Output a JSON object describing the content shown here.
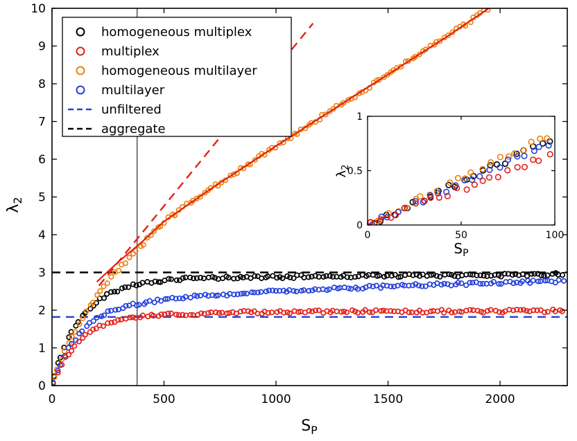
{
  "figure": {
    "background": "#ffffff"
  },
  "chart_data": {
    "type": "scatter",
    "title": "",
    "xlabel": "S_P",
    "ylabel": "λ_2",
    "xlabel_parts": {
      "base": "S",
      "sub": "P"
    },
    "ylabel_parts": {
      "base": "λ",
      "sub": "2"
    },
    "xlim": [
      0,
      2300
    ],
    "ylim": [
      0,
      10
    ],
    "xticks": [
      0,
      500,
      1000,
      1500,
      2000
    ],
    "yticks": [
      0,
      1,
      2,
      3,
      4,
      5,
      6,
      7,
      8,
      9,
      10
    ],
    "grid": false,
    "legend_position": "top-left",
    "jitter_seed": 42,
    "vertical_line": {
      "x": 380,
      "color": "#000000",
      "width": 1
    },
    "series": [
      {
        "name": "homogeneous multiplex",
        "color": "#000000",
        "marker": "circle",
        "marker_step": 16,
        "jitter": 0.04,
        "x": [
          0,
          10,
          25,
          50,
          75,
          100,
          150,
          200,
          250,
          300,
          350,
          400,
          450,
          500,
          600,
          700,
          850,
          1000,
          1250,
          1500,
          1750,
          2000,
          2150,
          2290
        ],
        "y": [
          0,
          0.28,
          0.55,
          0.95,
          1.28,
          1.55,
          1.95,
          2.24,
          2.42,
          2.55,
          2.64,
          2.71,
          2.76,
          2.79,
          2.83,
          2.85,
          2.87,
          2.88,
          2.9,
          2.91,
          2.92,
          2.93,
          2.94,
          2.95
        ]
      },
      {
        "name": "homogeneous multilayer",
        "color": "#ec820d",
        "marker": "circle",
        "marker_step": 16,
        "jitter": 0.05,
        "x": [
          0,
          10,
          25,
          50,
          75,
          100,
          150,
          200,
          250,
          300,
          350,
          380,
          400,
          450,
          500,
          600,
          700,
          850,
          1000,
          1250,
          1500,
          1750,
          1950
        ],
        "y": [
          0,
          0.2,
          0.45,
          0.8,
          1.1,
          1.4,
          1.9,
          2.35,
          2.75,
          3.1,
          3.4,
          3.58,
          3.72,
          4.05,
          4.35,
          4.78,
          5.18,
          5.77,
          6.35,
          7.3,
          8.25,
          9.2,
          10.0
        ]
      },
      {
        "name": "multilayer",
        "color": "#2440d9",
        "marker": "circle",
        "marker_step": 16,
        "jitter": 0.04,
        "x": [
          0,
          10,
          25,
          50,
          75,
          100,
          150,
          200,
          250,
          300,
          350,
          400,
          450,
          500,
          600,
          700,
          850,
          1000,
          1250,
          1500,
          1750,
          2000,
          2150,
          2290
        ],
        "y": [
          0,
          0.2,
          0.42,
          0.73,
          0.98,
          1.2,
          1.55,
          1.8,
          1.95,
          2.05,
          2.13,
          2.19,
          2.24,
          2.28,
          2.34,
          2.39,
          2.45,
          2.5,
          2.57,
          2.63,
          2.68,
          2.72,
          2.75,
          2.77
        ]
      },
      {
        "name": "multiplex",
        "color": "#e32017",
        "marker": "circle",
        "marker_step": 16,
        "jitter": 0.04,
        "x": [
          0,
          10,
          25,
          50,
          75,
          100,
          150,
          200,
          250,
          300,
          350,
          400,
          450,
          500,
          600,
          700,
          850,
          1000,
          1250,
          1500,
          1750,
          2000,
          2150,
          2290
        ],
        "y": [
          0,
          0.18,
          0.36,
          0.63,
          0.85,
          1.04,
          1.33,
          1.53,
          1.65,
          1.73,
          1.78,
          1.82,
          1.85,
          1.87,
          1.9,
          1.92,
          1.94,
          1.95,
          1.96,
          1.97,
          1.97,
          1.97,
          1.98,
          1.98
        ]
      }
    ],
    "lines": [
      {
        "name": "unfiltered",
        "color": "#2440d9",
        "style": "dashed",
        "width": 2.4,
        "layer": "back",
        "points": [
          [
            0,
            1.82
          ],
          [
            2300,
            1.82
          ]
        ]
      },
      {
        "name": "aggregate",
        "color": "#000000",
        "style": "dashed",
        "width": 2.4,
        "layer": "back",
        "points": [
          [
            0,
            3.0
          ],
          [
            2300,
            3.0
          ]
        ]
      },
      {
        "name": "linear-extrapolation",
        "color": "#e32017",
        "style": "dashed",
        "width": 2.4,
        "layer": "back",
        "points": [
          [
            210,
            2.65
          ],
          [
            1165,
            9.6
          ]
        ]
      },
      {
        "name": "fit",
        "color": "#e32017",
        "style": "solid",
        "width": 2.2,
        "layer": "front",
        "points": [
          [
            200,
            2.75
          ],
          [
            300,
            3.3
          ],
          [
            400,
            3.8
          ],
          [
            500,
            4.35
          ],
          [
            700,
            5.18
          ],
          [
            1000,
            6.35
          ],
          [
            1250,
            7.3
          ],
          [
            1500,
            8.25
          ],
          [
            1750,
            9.2
          ],
          [
            1950,
            10.0
          ]
        ]
      }
    ],
    "legend": {
      "entries": [
        {
          "label": "homogeneous multiplex",
          "swatch": "circle",
          "color": "#000000"
        },
        {
          "label": "multiplex",
          "swatch": "circle",
          "color": "#e32017"
        },
        {
          "label": "homogeneous multilayer",
          "swatch": "circle",
          "color": "#ec820d"
        },
        {
          "label": "multilayer",
          "swatch": "circle",
          "color": "#2440d9"
        },
        {
          "label": "unfiltered",
          "swatch": "dashed-line",
          "color": "#2440d9"
        },
        {
          "label": "aggregate",
          "swatch": "dashed-line",
          "color": "#000000"
        }
      ]
    },
    "inset": {
      "xlabel": "S_P",
      "ylabel": "λ_2",
      "xlabel_parts": {
        "base": "S",
        "sub": "P"
      },
      "ylabel_parts": {
        "base": "λ",
        "sub": "2"
      },
      "xlim": [
        0,
        100
      ],
      "ylim": [
        0,
        1
      ],
      "xticks": [
        0,
        50,
        100
      ],
      "yticks": [
        0,
        0.5,
        1
      ],
      "series": [
        {
          "name": "homogeneous multiplex",
          "color": "#000000",
          "marker": "circle",
          "marker_step": 4.5,
          "jitter": 0.025,
          "x": [
            0,
            100
          ],
          "y": [
            0,
            0.8
          ]
        },
        {
          "name": "homogeneous multilayer",
          "color": "#ec820d",
          "marker": "circle",
          "marker_step": 4.5,
          "jitter": 0.025,
          "x": [
            0,
            100
          ],
          "y": [
            0,
            0.85
          ]
        },
        {
          "name": "multilayer",
          "color": "#2440d9",
          "marker": "circle",
          "marker_step": 4.5,
          "jitter": 0.025,
          "x": [
            0,
            100
          ],
          "y": [
            0,
            0.78
          ]
        },
        {
          "name": "multiplex",
          "color": "#e32017",
          "marker": "circle",
          "marker_step": 4.5,
          "jitter": 0.03,
          "x": [
            0,
            100
          ],
          "y": [
            0,
            0.66
          ]
        }
      ],
      "lines": [
        {
          "name": "fit",
          "color": "#e32017",
          "style": "solid",
          "width": 1.8,
          "layer": "front",
          "points": [
            [
              0,
              0
            ],
            [
              10,
              0.085
            ]
          ]
        }
      ]
    }
  }
}
